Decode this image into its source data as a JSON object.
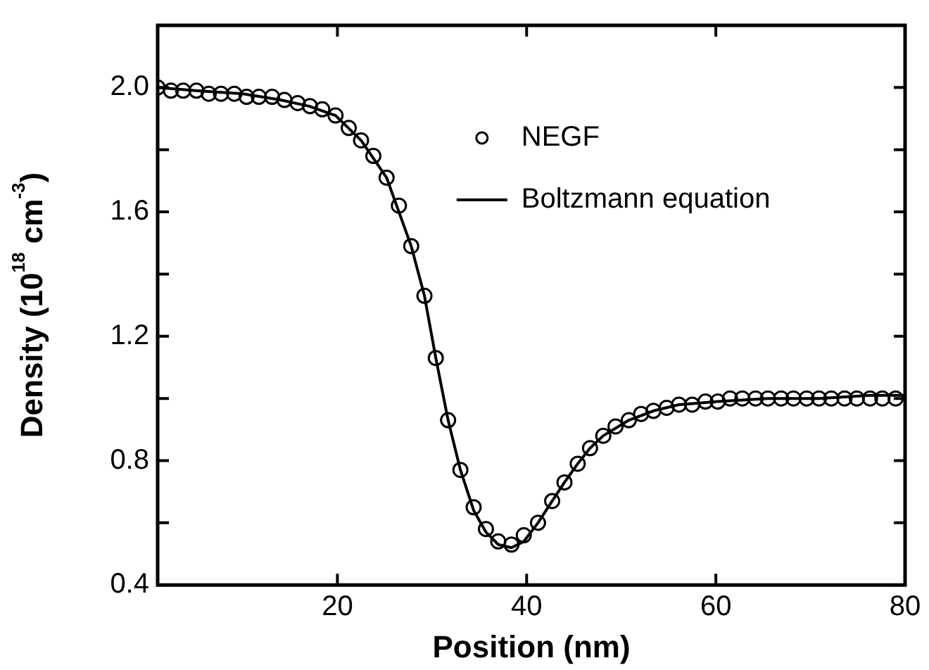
{
  "chart_data": {
    "type": "line",
    "xlabel": "Position (nm)",
    "ylabel": "Density (10$^{18}$ cm$^{-3}$)",
    "xlim": [
      1,
      80
    ],
    "xticks": [
      20,
      40,
      60,
      80
    ],
    "ylim": [
      0.4,
      2.2
    ],
    "yticks": [
      {
        "value": 0.4,
        "label": "0.4"
      },
      {
        "value": 0.6,
        "label": null
      },
      {
        "value": 0.8,
        "label": "0.8"
      },
      {
        "value": 1.0,
        "label": null
      },
      {
        "value": 1.2,
        "label": "1.2"
      },
      {
        "value": 1.4,
        "label": null
      },
      {
        "value": 1.6,
        "label": "1.6"
      },
      {
        "value": 1.8,
        "label": null
      },
      {
        "value": 2.0,
        "label": "2.0"
      }
    ],
    "legend": "top right",
    "grid": false,
    "series": [
      {
        "name": "NEGF",
        "type": "scatter",
        "marker": "circle",
        "color": "#000000",
        "x": [
          1.0,
          2.4,
          3.7,
          5.1,
          6.4,
          7.7,
          9.1,
          10.4,
          11.7,
          13.1,
          14.4,
          15.8,
          17.1,
          18.4,
          19.8,
          21.2,
          22.5,
          23.8,
          25.2,
          26.5,
          27.8,
          29.2,
          30.4,
          31.7,
          33.0,
          34.4,
          35.7,
          37.0,
          38.4,
          39.7,
          41.2,
          42.7,
          44.0,
          45.4,
          46.7,
          48.1,
          49.4,
          50.8,
          52.1,
          53.4,
          54.8,
          56.1,
          57.5,
          58.9,
          60.2,
          61.5,
          62.8,
          64.2,
          65.5,
          66.9,
          68.2,
          69.6,
          70.9,
          72.2,
          73.6,
          74.9,
          76.3,
          77.6,
          79.0
        ],
        "values": [
          2.0,
          1.99,
          1.99,
          1.99,
          1.98,
          1.98,
          1.98,
          1.97,
          1.97,
          1.97,
          1.96,
          1.95,
          1.94,
          1.93,
          1.91,
          1.87,
          1.83,
          1.78,
          1.71,
          1.62,
          1.49,
          1.33,
          1.13,
          0.93,
          0.77,
          0.65,
          0.58,
          0.54,
          0.53,
          0.56,
          0.6,
          0.67,
          0.73,
          0.79,
          0.84,
          0.88,
          0.91,
          0.93,
          0.95,
          0.96,
          0.97,
          0.98,
          0.98,
          0.99,
          0.99,
          1.0,
          1.0,
          1.0,
          1.0,
          1.0,
          1.0,
          1.0,
          1.0,
          1.0,
          1.0,
          1.0,
          1.0,
          1.0,
          1.0
        ]
      },
      {
        "name": "Boltzmann equation",
        "type": "line",
        "marker": "none",
        "line_style": "solid",
        "color": "#000000",
        "x": [
          1,
          5,
          10,
          14,
          17,
          19.8,
          22.5,
          25.2,
          27.8,
          29.2,
          30.4,
          31.7,
          33.0,
          34.4,
          35.7,
          37.0,
          38.4,
          39.7,
          41.2,
          42.7,
          44.0,
          45.4,
          46.7,
          48.1,
          50.8,
          53.4,
          56.1,
          60.2,
          65.5,
          70.9,
          76.3,
          80
        ],
        "values": [
          2.0,
          1.99,
          1.98,
          1.96,
          1.94,
          1.91,
          1.83,
          1.71,
          1.49,
          1.33,
          1.13,
          0.93,
          0.77,
          0.64,
          0.57,
          0.53,
          0.52,
          0.54,
          0.6,
          0.67,
          0.73,
          0.79,
          0.84,
          0.88,
          0.93,
          0.96,
          0.98,
          0.99,
          1.0,
          1.0,
          1.01,
          1.01
        ]
      }
    ]
  }
}
